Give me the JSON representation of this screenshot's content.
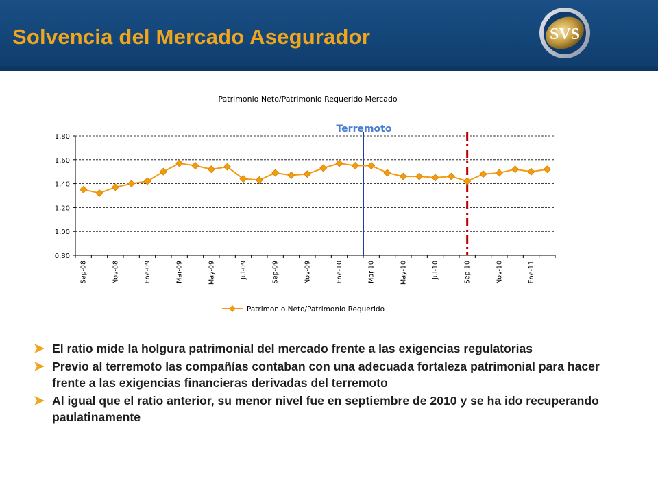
{
  "slide": {
    "title": "Solvencia del Mercado Asegurador",
    "logo_text": "SVS",
    "colors": {
      "header_bg": "#134476",
      "title": "#f0a51e",
      "series": "#f39c12",
      "bullet_arrow": "#f0a51e",
      "earthquake_line": "#1f3d99",
      "min_marker_line": "#c00000"
    }
  },
  "chart_data": {
    "type": "line",
    "title": "Patrimonio Neto/Patrimonio Requerido Mercado",
    "xlabel": "",
    "ylabel": "",
    "ylim": [
      0.8,
      1.8
    ],
    "yticks": [
      "0,80",
      "1,00",
      "1,20",
      "1,40",
      "1,60",
      "1,80"
    ],
    "x": [
      "Sep-08",
      "Oct-08",
      "Nov-08",
      "Dic-08",
      "Ene-09",
      "Feb-09",
      "Mar-09",
      "Abr-09",
      "May-09",
      "Jun-09",
      "Jul-09",
      "Ago-09",
      "Sep-09",
      "Oct-09",
      "Nov-09",
      "Dic-09",
      "Ene-10",
      "Feb-10",
      "Mar-10",
      "Abr-10",
      "May-10",
      "Jun-10",
      "Jul-10",
      "Ago-10",
      "Sep-10",
      "Oct-10",
      "Nov-10",
      "Dic-10",
      "Ene-11",
      "Feb-11"
    ],
    "x_tick_labels": [
      "Sep-08",
      "",
      "Nov-08",
      "",
      "Ene-09",
      "",
      "Mar-09",
      "",
      "May-09",
      "",
      "Jul-09",
      "",
      "Sep-09",
      "",
      "Nov-09",
      "",
      "Ene-10",
      "",
      "Mar-10",
      "",
      "May-10",
      "",
      "Jul-10",
      "",
      "Sep-10",
      "",
      "Nov-10",
      "",
      "Ene-11",
      ""
    ],
    "series": [
      {
        "name": "Patrimonio Neto/Patrimonio Requerido",
        "color": "#f39c12",
        "marker": "diamond",
        "values": [
          1.35,
          1.32,
          1.37,
          1.4,
          1.42,
          1.5,
          1.57,
          1.55,
          1.52,
          1.54,
          1.44,
          1.43,
          1.49,
          1.47,
          1.48,
          1.53,
          1.57,
          1.55,
          1.55,
          1.49,
          1.46,
          1.46,
          1.45,
          1.46,
          1.42,
          1.48,
          1.49,
          1.52,
          1.5,
          1.52
        ]
      }
    ],
    "grid": true,
    "legend": "bottom",
    "annotations": [
      {
        "label": "Terremoto",
        "between": [
          "Feb-10",
          "Mar-10"
        ],
        "style": "solid",
        "color": "#1f3d99"
      },
      {
        "label": "",
        "at": "Sep-10",
        "style": "dash-dot",
        "color": "#c00000"
      }
    ]
  },
  "bullets": [
    "El ratio mide la holgura patrimonial del mercado frente a las exigencias regulatorias",
    "Previo al terremoto las compañías contaban con una adecuada fortaleza patrimonial para hacer frente a las exigencias financieras derivadas del terremoto",
    "Al igual que el ratio anterior, su menor nivel fue en septiembre de 2010 y se ha ido recuperando paulatinamente"
  ]
}
